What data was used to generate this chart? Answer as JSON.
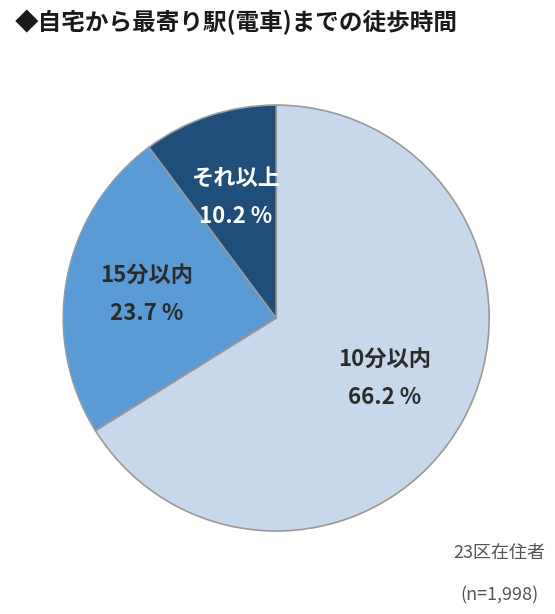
{
  "title": "◆自宅から最寄り駅(電車)までの徒歩時間",
  "slices": [
    66.2,
    23.7,
    10.2
  ],
  "labels": [
    "10分以内",
    "15分以内",
    "それ以上"
  ],
  "pct_labels": [
    "66.2 %",
    "23.7 %",
    "10.2 %"
  ],
  "colors": [
    "#c8d8ec",
    "#5b9bd5",
    "#1f4e79"
  ],
  "label_colors": [
    "#2b2b2b",
    "#2b2b2b",
    "#ffffff"
  ],
  "note_line1": "23区在住者",
  "note_line2": "(n=1,998)",
  "background_color": "#ffffff",
  "edge_color": "#999999",
  "title_fontsize": 17,
  "label_fontsize": 16,
  "pct_fontsize": 16,
  "note_fontsize": 13
}
